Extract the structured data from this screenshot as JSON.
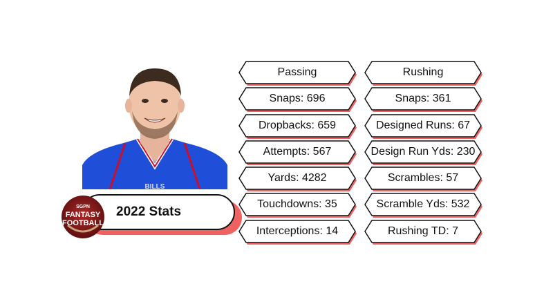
{
  "badge": {
    "title": "2022 Stats"
  },
  "logo": {
    "top_text": "SGPN",
    "line1": "FANTASY",
    "line2": "FOOTBALL"
  },
  "photo": {
    "jersey_text": "BILLS"
  },
  "passing": {
    "header": "Passing",
    "rows": [
      "Snaps: 696",
      "Dropbacks: 659",
      "Attempts: 567",
      "Yards: 4282",
      "Touchdowns: 35",
      "Interceptions: 14"
    ]
  },
  "rushing": {
    "header": "Rushing",
    "rows": [
      "Snaps: 361",
      "Designed Runs: 67",
      "Design Run Yds: 230",
      "Scrambles: 57",
      "Scramble Yds: 532",
      "Rushing TD: 7"
    ]
  },
  "colors": {
    "accent_shadow": "#f06262",
    "logo_red": "#8b1a1a",
    "jersey_blue": "#1f4fd8"
  }
}
